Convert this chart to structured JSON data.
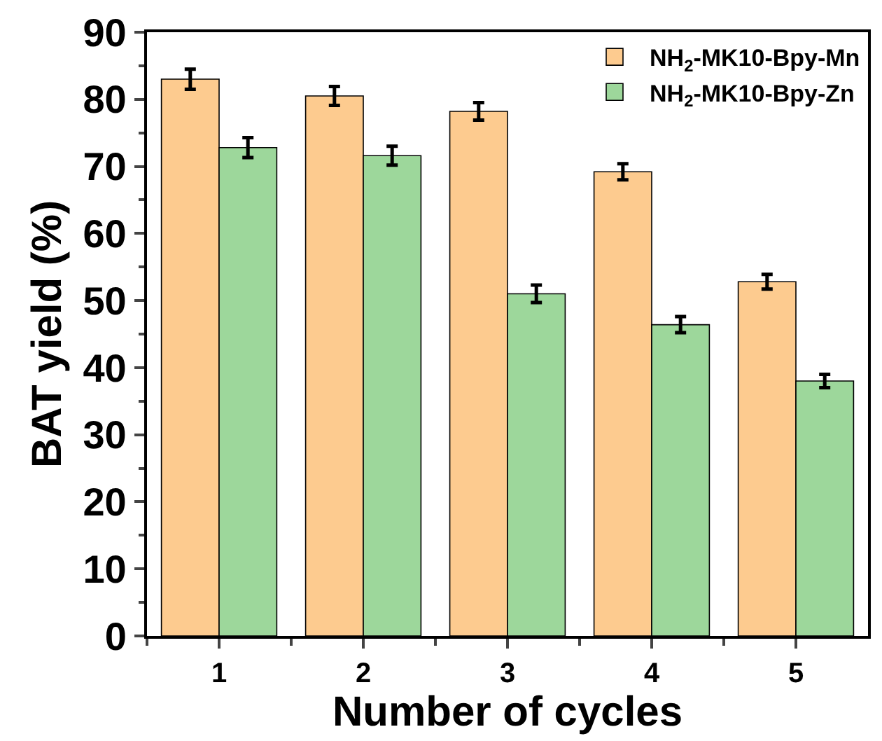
{
  "chart_data": {
    "type": "bar",
    "xlabel": "Number of cycles",
    "ylabel": "BAT yield (%)",
    "categories": [
      "1",
      "2",
      "3",
      "4",
      "5"
    ],
    "series": [
      {
        "name": "NH$_{2}$-MK10-Bpy-Mn",
        "color": "#fdcb8f",
        "values": [
          83.0,
          80.5,
          78.2,
          69.2,
          52.8
        ],
        "errors": [
          1.5,
          1.4,
          1.3,
          1.2,
          1.1
        ]
      },
      {
        "name": "NH$_{2}$-MK10-Bpy-Zn",
        "color": "#9dd79b",
        "values": [
          72.8,
          71.6,
          51.0,
          46.4,
          38.0
        ],
        "errors": [
          1.5,
          1.4,
          1.3,
          1.2,
          1.0
        ]
      }
    ],
    "ylim": [
      0,
      90
    ],
    "yticks": [
      0,
      10,
      20,
      30,
      40,
      50,
      60,
      70,
      80,
      90
    ],
    "legend": "top right"
  }
}
